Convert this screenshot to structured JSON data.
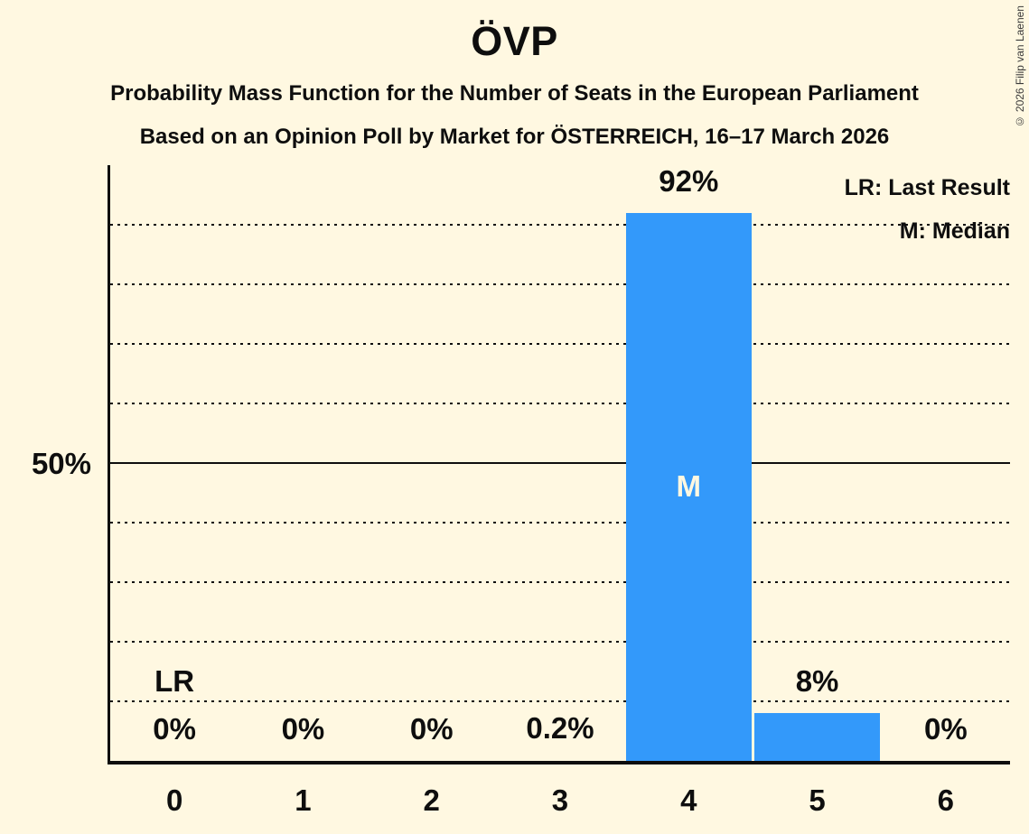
{
  "header": {
    "title": "ÖVP",
    "subtitle1": "Probability Mass Function for the Number of Seats in the European Parliament",
    "subtitle2": "Based on an Opinion Poll by Market for ÖSTERREICH, 16–17 March 2026",
    "copyright": "© 2026 Filip van Laenen"
  },
  "legend": {
    "last_result": "LR: Last Result",
    "median": "M: Median"
  },
  "chart_data": {
    "type": "bar",
    "title": "ÖVP",
    "categories": [
      "0",
      "1",
      "2",
      "3",
      "4",
      "5",
      "6"
    ],
    "values": [
      0,
      0,
      0,
      0.2,
      92,
      8,
      0
    ],
    "value_labels": [
      "0%",
      "0%",
      "0%",
      "0.2%",
      "92%",
      "8%",
      "0%"
    ],
    "ylim": [
      0,
      100
    ],
    "ytick": {
      "value": 50,
      "label": "50%"
    },
    "gridlines_percent": [
      10,
      20,
      30,
      40,
      60,
      70,
      80,
      90
    ],
    "solid_line_percent": 50,
    "grid": "dotted horizontal",
    "legend_position": "top-right",
    "median_seat": "4",
    "median_marker": "M",
    "last_result_seat": "0",
    "last_result_marker": "LR",
    "bar_color": "#3399FA",
    "background_color": "#FFF8E1",
    "text_color": "#0e0e0e"
  }
}
